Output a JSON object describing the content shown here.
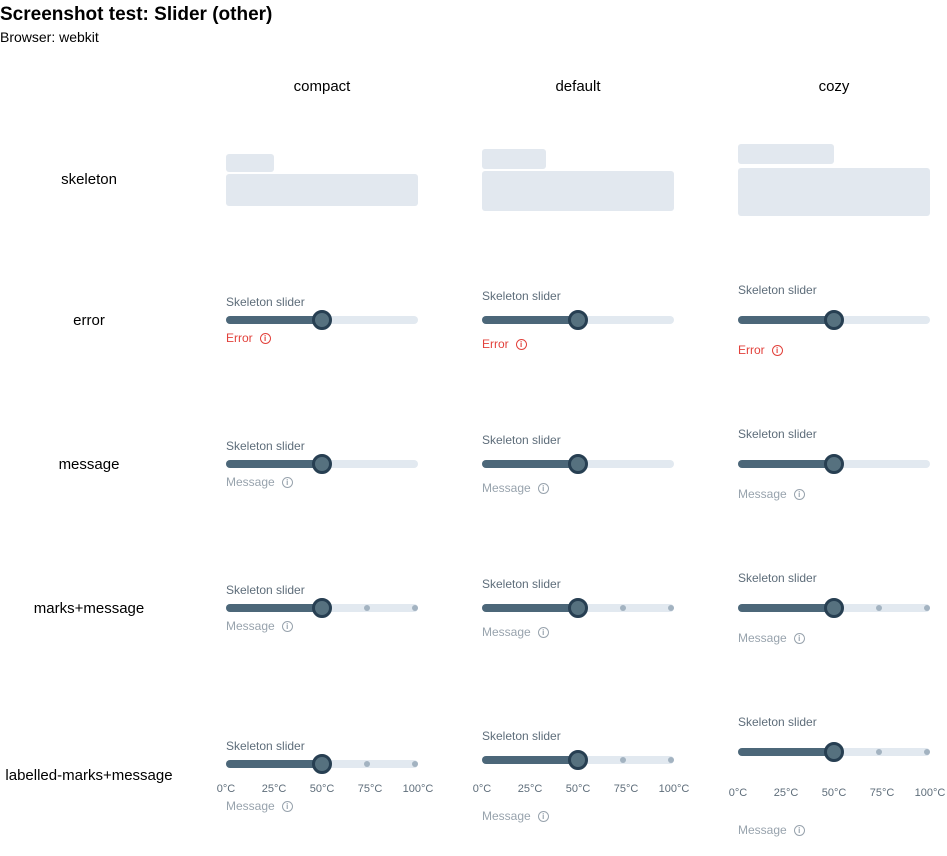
{
  "page": {
    "title": "Screenshot test: Slider (other)",
    "subtitle": "Browser: webkit"
  },
  "columns": [
    "compact",
    "default",
    "cozy"
  ],
  "rows": [
    "skeleton",
    "error",
    "message",
    "marks+message",
    "labelled-marks+message"
  ],
  "slider": {
    "label": "Skeleton slider",
    "value_percent": 50,
    "marks_percent": [
      50,
      75,
      100
    ],
    "tick_labels": [
      "0°C",
      "25°C",
      "50°C",
      "75°C",
      "100°C"
    ]
  },
  "error_text": "Error",
  "message_text": "Message",
  "info_icon": "info-circle-icon",
  "colors": {
    "track": "#e2e9f0",
    "fill": "#4c6779",
    "thumb_border": "#273f52",
    "skeleton": "#e2e8ef",
    "error": "#e2413b",
    "message": "#98a3ad"
  }
}
